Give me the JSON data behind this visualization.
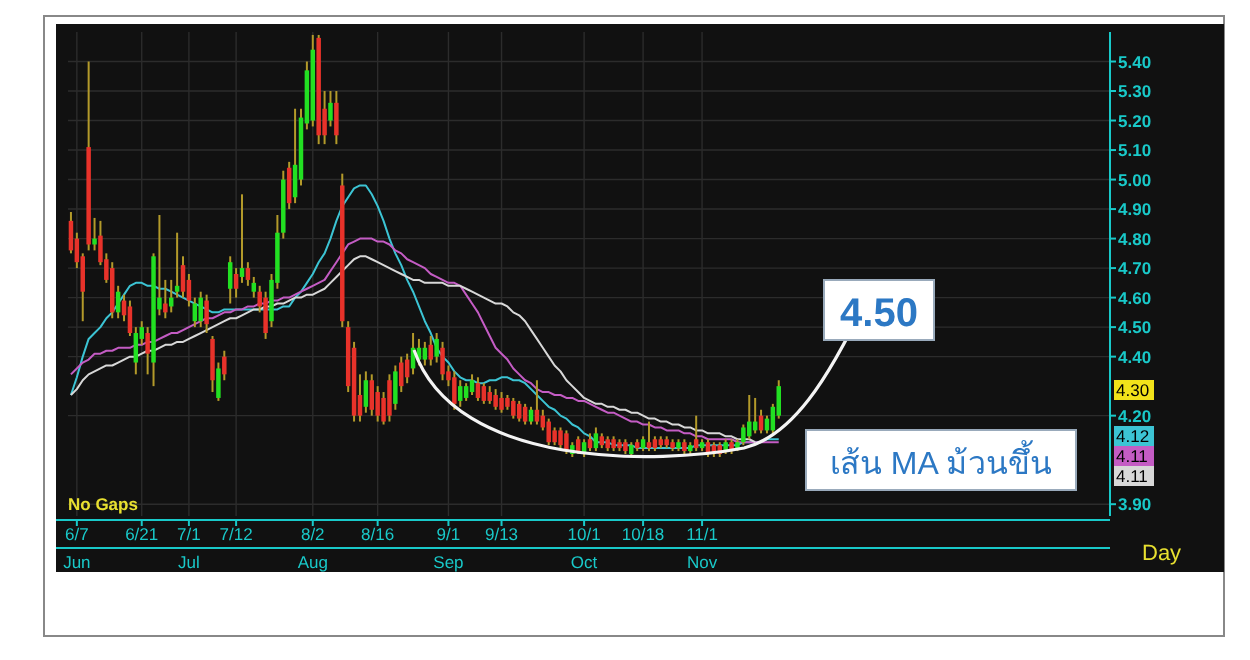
{
  "chart_data": {
    "type": "candlestick",
    "categories": [
      null,
      "6/7\nJun",
      null,
      null,
      null,
      null,
      null,
      null,
      null,
      null,
      null,
      null,
      "6/21",
      null,
      null,
      null,
      null,
      null,
      null,
      null,
      "7/1\nJul",
      null,
      null,
      null,
      null,
      null,
      null,
      null,
      "7/12",
      null,
      null,
      null,
      null,
      null,
      null,
      null,
      null,
      null,
      null,
      null,
      null,
      "8/2\nAug",
      null,
      null,
      null,
      null,
      null,
      null,
      null,
      null,
      null,
      null,
      "8/16",
      null,
      null,
      null,
      null,
      null,
      null,
      null,
      null,
      null,
      null,
      null,
      "9/1\nSep",
      null,
      null,
      null,
      null,
      null,
      null,
      null,
      null,
      "9/13",
      null,
      null,
      null,
      null,
      null,
      null,
      null,
      null,
      null,
      null,
      null,
      null,
      null,
      "10/1\nOct",
      null,
      null,
      null,
      null,
      null,
      null,
      null,
      null,
      null,
      "10/18",
      null,
      null,
      null,
      null,
      null,
      null,
      null,
      null,
      null,
      "11/1\nNov",
      null,
      null,
      null,
      null,
      null,
      null,
      null,
      null,
      null,
      null,
      null,
      null,
      null
    ],
    "ohlc": [
      [
        4.86,
        4.89,
        4.75,
        4.76
      ],
      [
        4.8,
        4.82,
        4.7,
        4.72
      ],
      [
        4.74,
        4.75,
        4.52,
        4.62
      ],
      [
        5.11,
        5.4,
        4.76,
        4.78
      ],
      [
        4.78,
        4.87,
        4.76,
        4.8
      ],
      [
        4.81,
        4.86,
        4.71,
        4.72
      ],
      [
        4.73,
        4.75,
        4.65,
        4.66
      ],
      [
        4.7,
        4.72,
        4.53,
        4.55
      ],
      [
        4.55,
        4.64,
        4.53,
        4.62
      ],
      [
        4.59,
        4.61,
        4.52,
        4.54
      ],
      [
        4.57,
        4.59,
        4.47,
        4.48
      ],
      [
        4.38,
        4.5,
        4.34,
        4.48
      ],
      [
        4.46,
        4.52,
        4.44,
        4.5
      ],
      [
        4.48,
        4.5,
        4.34,
        4.41
      ],
      [
        4.38,
        4.75,
        4.3,
        4.74
      ],
      [
        4.56,
        4.88,
        4.54,
        4.6
      ],
      [
        4.58,
        4.66,
        4.53,
        4.55
      ],
      [
        4.57,
        4.66,
        4.55,
        4.6
      ],
      [
        4.62,
        4.82,
        4.6,
        4.64
      ],
      [
        4.71,
        4.74,
        4.6,
        4.62
      ],
      [
        4.66,
        4.68,
        4.57,
        4.59
      ],
      [
        4.52,
        4.6,
        4.5,
        4.58
      ],
      [
        4.52,
        4.62,
        4.5,
        4.6
      ],
      [
        4.59,
        4.61,
        4.48,
        4.51
      ],
      [
        4.46,
        4.47,
        4.28,
        4.32
      ],
      [
        4.26,
        4.38,
        4.25,
        4.36
      ],
      [
        4.4,
        4.42,
        4.32,
        4.34
      ],
      [
        4.63,
        4.74,
        4.58,
        4.72
      ],
      [
        4.68,
        4.7,
        4.6,
        4.63
      ],
      [
        4.67,
        4.95,
        4.65,
        4.7
      ],
      [
        4.7,
        4.72,
        4.64,
        4.66
      ],
      [
        4.62,
        4.67,
        4.6,
        4.65
      ],
      [
        4.62,
        4.64,
        4.55,
        4.57
      ],
      [
        4.6,
        4.62,
        4.46,
        4.48
      ],
      [
        4.52,
        4.68,
        4.5,
        4.66
      ],
      [
        4.65,
        4.88,
        4.63,
        4.82
      ],
      [
        4.82,
        5.03,
        4.8,
        5.0
      ],
      [
        5.04,
        5.06,
        4.9,
        4.92
      ],
      [
        4.94,
        5.24,
        4.92,
        5.05
      ],
      [
        5.0,
        5.24,
        4.98,
        5.21
      ],
      [
        5.19,
        5.4,
        5.17,
        5.37
      ],
      [
        5.2,
        5.49,
        5.18,
        5.44
      ],
      [
        5.48,
        5.49,
        5.12,
        5.15
      ],
      [
        5.24,
        5.3,
        5.12,
        5.15
      ],
      [
        5.2,
        5.3,
        5.18,
        5.26
      ],
      [
        5.26,
        5.3,
        5.12,
        5.15
      ],
      [
        4.98,
        5.02,
        4.5,
        4.52
      ],
      [
        4.5,
        4.52,
        4.28,
        4.3
      ],
      [
        4.43,
        4.45,
        4.18,
        4.2
      ],
      [
        4.27,
        4.34,
        4.18,
        4.2
      ],
      [
        4.23,
        4.35,
        4.21,
        4.32
      ],
      [
        4.32,
        4.34,
        4.2,
        4.22
      ],
      [
        4.28,
        4.3,
        4.18,
        4.2
      ],
      [
        4.26,
        4.28,
        4.17,
        4.18
      ],
      [
        4.32,
        4.34,
        4.18,
        4.2
      ],
      [
        4.24,
        4.37,
        4.22,
        4.35
      ],
      [
        4.38,
        4.4,
        4.28,
        4.3
      ],
      [
        4.39,
        4.41,
        4.31,
        4.33
      ],
      [
        4.36,
        4.48,
        4.34,
        4.43
      ],
      [
        4.39,
        4.46,
        4.37,
        4.43
      ],
      [
        4.39,
        4.45,
        4.37,
        4.43
      ],
      [
        4.44,
        4.47,
        4.37,
        4.39
      ],
      [
        4.4,
        4.48,
        4.38,
        4.46
      ],
      [
        4.43,
        4.45,
        4.32,
        4.34
      ],
      [
        4.35,
        4.37,
        4.3,
        4.32
      ],
      [
        4.33,
        4.35,
        4.22,
        4.24
      ],
      [
        4.25,
        4.32,
        4.23,
        4.3
      ],
      [
        4.26,
        4.31,
        4.25,
        4.3
      ],
      [
        4.28,
        4.34,
        4.27,
        4.32
      ],
      [
        4.31,
        4.33,
        4.25,
        4.26
      ],
      [
        4.3,
        4.31,
        4.24,
        4.25
      ],
      [
        4.28,
        4.3,
        4.24,
        4.25
      ],
      [
        4.27,
        4.29,
        4.22,
        4.23
      ],
      [
        4.26,
        4.28,
        4.21,
        4.22
      ],
      [
        4.26,
        4.27,
        4.22,
        4.23
      ],
      [
        4.25,
        4.26,
        4.19,
        4.2
      ],
      [
        4.24,
        4.25,
        4.18,
        4.19
      ],
      [
        4.23,
        4.24,
        4.17,
        4.18
      ],
      [
        4.18,
        4.23,
        4.17,
        4.22
      ],
      [
        4.22,
        4.32,
        4.17,
        4.18
      ],
      [
        4.2,
        4.22,
        4.15,
        4.16
      ],
      [
        4.18,
        4.19,
        4.1,
        4.11
      ],
      [
        4.15,
        4.16,
        4.1,
        4.11
      ],
      [
        4.15,
        4.16,
        4.09,
        4.1
      ],
      [
        4.14,
        4.15,
        4.07,
        4.08
      ],
      [
        4.07,
        4.11,
        4.06,
        4.1
      ],
      [
        4.12,
        4.13,
        4.07,
        4.08
      ],
      [
        4.07,
        4.12,
        4.06,
        4.11
      ],
      [
        4.12,
        4.14,
        4.08,
        4.09
      ],
      [
        4.09,
        4.16,
        4.08,
        4.14
      ],
      [
        4.13,
        4.14,
        4.09,
        4.1
      ],
      [
        4.12,
        4.13,
        4.08,
        4.09
      ],
      [
        4.12,
        4.13,
        4.08,
        4.09
      ],
      [
        4.11,
        4.12,
        4.08,
        4.09
      ],
      [
        4.11,
        4.12,
        4.07,
        4.08
      ],
      [
        4.07,
        4.11,
        4.06,
        4.1
      ],
      [
        4.11,
        4.12,
        4.08,
        4.09
      ],
      [
        4.09,
        4.13,
        4.08,
        4.12
      ],
      [
        4.11,
        4.18,
        4.08,
        4.09
      ],
      [
        4.12,
        4.13,
        4.08,
        4.09
      ],
      [
        4.12,
        4.13,
        4.09,
        4.1
      ],
      [
        4.12,
        4.13,
        4.09,
        4.1
      ],
      [
        4.11,
        4.12,
        4.08,
        4.09
      ],
      [
        4.09,
        4.12,
        4.08,
        4.11
      ],
      [
        4.11,
        4.12,
        4.07,
        4.08
      ],
      [
        4.08,
        4.11,
        4.07,
        4.1
      ],
      [
        4.12,
        4.2,
        4.08,
        4.09
      ],
      [
        4.09,
        4.12,
        4.08,
        4.11
      ],
      [
        4.11,
        4.12,
        4.06,
        4.07
      ],
      [
        4.1,
        4.11,
        4.06,
        4.07
      ],
      [
        4.1,
        4.11,
        4.06,
        4.07
      ],
      [
        4.08,
        4.12,
        4.07,
        4.11
      ],
      [
        4.11,
        4.12,
        4.07,
        4.08
      ],
      [
        4.09,
        4.12,
        4.08,
        4.11
      ],
      [
        4.11,
        4.17,
        4.1,
        4.16
      ],
      [
        4.13,
        4.27,
        4.12,
        4.18
      ],
      [
        4.15,
        4.26,
        4.14,
        4.18
      ],
      [
        4.2,
        4.22,
        4.14,
        4.15
      ],
      [
        4.15,
        4.2,
        4.14,
        4.19
      ],
      [
        4.15,
        4.24,
        4.14,
        4.23
      ],
      [
        4.2,
        4.32,
        4.19,
        4.3
      ]
    ],
    "series": [
      {
        "type": "line",
        "color": "#3cc4d4",
        "values": [
          4.27,
          4.33,
          4.4,
          4.46,
          4.48,
          4.5,
          4.53,
          4.55,
          4.58,
          4.61,
          4.64,
          4.65,
          4.65,
          4.64,
          4.64,
          4.63,
          4.63,
          4.62,
          4.61,
          4.6,
          4.59,
          4.58,
          4.57,
          4.56,
          4.55,
          4.55,
          4.56,
          4.56,
          4.56,
          4.56,
          4.56,
          4.56,
          4.56,
          4.56,
          4.56,
          4.56,
          4.57,
          4.57,
          4.6,
          4.62,
          4.65,
          4.68,
          4.72,
          4.75,
          4.8,
          4.86,
          4.91,
          4.94,
          4.97,
          4.98,
          4.98,
          4.95,
          4.91,
          4.86,
          4.8,
          4.75,
          4.71,
          4.66,
          4.62,
          4.57,
          4.52,
          4.48,
          4.43,
          4.4,
          4.38,
          4.35,
          4.33,
          4.32,
          4.32,
          4.31,
          4.31,
          4.32,
          4.32,
          4.33,
          4.33,
          4.32,
          4.32,
          4.31,
          4.29,
          4.27,
          4.25,
          4.23,
          4.22,
          4.2,
          4.19,
          4.17,
          4.16,
          4.14,
          4.13,
          4.11,
          4.11,
          4.11,
          4.1,
          4.1,
          4.1,
          4.1,
          4.09,
          4.09,
          4.09,
          4.09,
          4.09,
          4.09,
          4.09,
          4.09,
          4.09,
          4.09,
          4.1,
          4.1,
          4.1,
          4.1,
          4.1,
          4.1,
          4.1,
          4.1,
          4.11,
          4.11,
          4.11,
          4.11,
          4.12,
          4.12,
          4.12
        ]
      },
      {
        "type": "line",
        "color": "#c45cc4",
        "values": [
          4.34,
          4.36,
          4.38,
          4.39,
          4.41,
          4.41,
          4.42,
          4.42,
          4.43,
          4.43,
          4.43,
          4.44,
          4.44,
          4.45,
          4.45,
          4.46,
          4.47,
          4.48,
          4.48,
          4.49,
          4.5,
          4.51,
          4.52,
          4.53,
          4.53,
          4.54,
          4.55,
          4.55,
          4.56,
          4.56,
          4.57,
          4.57,
          4.58,
          4.58,
          4.59,
          4.59,
          4.6,
          4.6,
          4.61,
          4.62,
          4.63,
          4.64,
          4.65,
          4.66,
          4.69,
          4.72,
          4.75,
          4.78,
          4.79,
          4.8,
          4.8,
          4.8,
          4.79,
          4.79,
          4.78,
          4.76,
          4.75,
          4.73,
          4.72,
          4.71,
          4.7,
          4.68,
          4.67,
          4.66,
          4.65,
          4.65,
          4.64,
          4.61,
          4.58,
          4.55,
          4.51,
          4.47,
          4.43,
          4.41,
          4.39,
          4.36,
          4.34,
          4.32,
          4.31,
          4.29,
          4.28,
          4.28,
          4.27,
          4.27,
          4.26,
          4.26,
          4.25,
          4.25,
          4.24,
          4.23,
          4.22,
          4.21,
          4.21,
          4.2,
          4.19,
          4.18,
          4.18,
          4.17,
          4.17,
          4.16,
          4.16,
          4.15,
          4.15,
          4.15,
          4.14,
          4.14,
          4.13,
          4.13,
          4.12,
          4.12,
          4.12,
          4.12,
          4.12,
          4.11,
          4.11,
          4.11,
          4.11,
          4.11,
          4.11,
          4.11,
          4.11
        ]
      },
      {
        "type": "line",
        "color": "#d8d8d8",
        "values": [
          4.27,
          4.29,
          4.32,
          4.34,
          4.35,
          4.36,
          4.37,
          4.37,
          4.38,
          4.39,
          4.4,
          4.4,
          4.41,
          4.42,
          4.42,
          4.43,
          4.44,
          4.44,
          4.45,
          4.45,
          4.46,
          4.47,
          4.48,
          4.49,
          4.5,
          4.51,
          4.52,
          4.53,
          4.53,
          4.54,
          4.55,
          4.56,
          4.56,
          4.57,
          4.57,
          4.58,
          4.58,
          4.59,
          4.6,
          4.6,
          4.61,
          4.61,
          4.62,
          4.63,
          4.65,
          4.67,
          4.69,
          4.71,
          4.73,
          4.74,
          4.74,
          4.73,
          4.72,
          4.71,
          4.7,
          4.69,
          4.68,
          4.67,
          4.66,
          4.66,
          4.65,
          4.65,
          4.65,
          4.65,
          4.64,
          4.64,
          4.64,
          4.63,
          4.62,
          4.61,
          4.6,
          4.59,
          4.58,
          4.58,
          4.57,
          4.55,
          4.54,
          4.52,
          4.49,
          4.46,
          4.43,
          4.4,
          4.37,
          4.35,
          4.32,
          4.3,
          4.28,
          4.26,
          4.25,
          4.24,
          4.24,
          4.23,
          4.23,
          4.22,
          4.22,
          4.21,
          4.21,
          4.2,
          4.19,
          4.19,
          4.18,
          4.18,
          4.17,
          4.17,
          4.16,
          4.16,
          4.15,
          4.15,
          4.14,
          4.14,
          4.14,
          4.13,
          4.13,
          4.12,
          4.12,
          4.12,
          4.11,
          null,
          null,
          null,
          null
        ]
      }
    ],
    "ylim": [
      3.86,
      5.5
    ],
    "yticks": [
      {
        "value": 5.4,
        "label": "5.40"
      },
      {
        "value": 5.3,
        "label": "5.30"
      },
      {
        "value": 5.2,
        "label": "5.20"
      },
      {
        "value": 5.1,
        "label": "5.10"
      },
      {
        "value": 5.0,
        "label": "5.00"
      },
      {
        "value": 4.9,
        "label": "4.90"
      },
      {
        "value": 4.8,
        "label": "4.80"
      },
      {
        "value": 4.7,
        "label": "4.70"
      },
      {
        "value": 4.6,
        "label": "4.60"
      },
      {
        "value": 4.5,
        "label": "4.50"
      },
      {
        "value": 4.4,
        "label": "4.40"
      },
      {
        "value": 4.2,
        "label": "4.20"
      },
      {
        "value": 3.9,
        "label": "3.90"
      }
    ],
    "grid": true,
    "annotations": [
      "No Gaps",
      "Day",
      "4.30",
      "4.12",
      "4.11",
      "4.11",
      "4.50",
      "เส้น MA ม้วนขึ้น"
    ]
  }
}
